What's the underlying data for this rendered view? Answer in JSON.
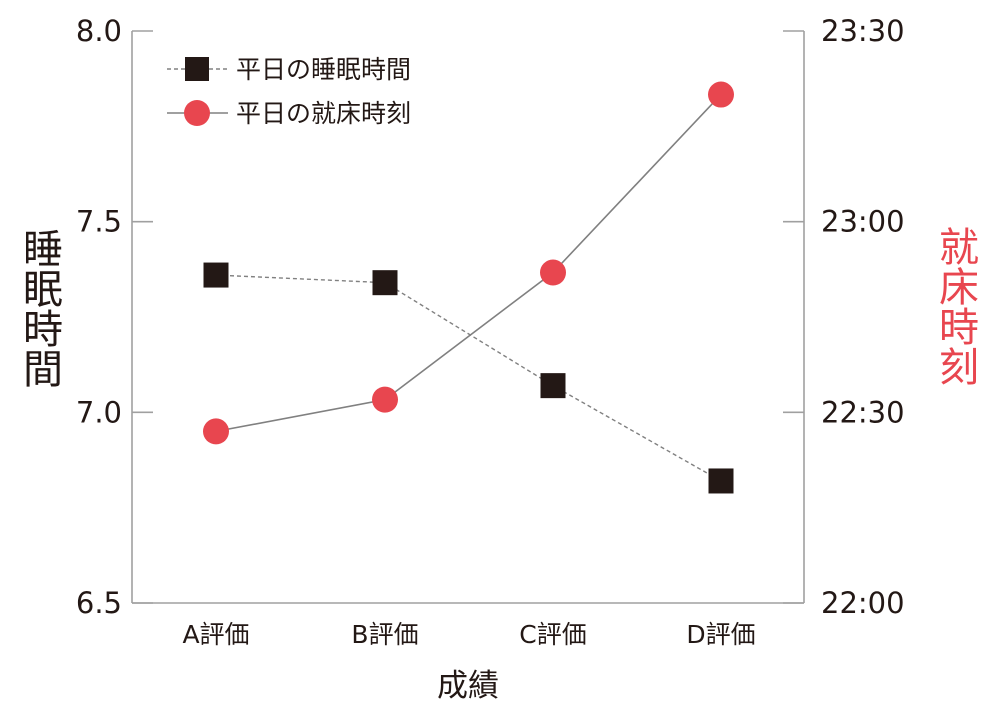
{
  "chart_data": {
    "type": "line",
    "title": "",
    "categories": [
      "A評価",
      "B評価",
      "C評価",
      "D評価"
    ],
    "xlabel": "成績",
    "ylabel": "睡眠時間",
    "ylabel_right": "就床時刻",
    "ylim": [
      6.5,
      8.0
    ],
    "yticks": [
      "6.5",
      "7.0",
      "7.5",
      "8.0"
    ],
    "ylim_right_minutes_after_2200": [
      0,
      90
    ],
    "yticks_right": [
      "22:00",
      "22:30",
      "23:00",
      "23:30"
    ],
    "grid": false,
    "legend_position": "upper-left",
    "series": [
      {
        "name": "平日の睡眠時間",
        "axis": "left",
        "marker": "square",
        "line_style": "dashed",
        "color": "#231815",
        "values": [
          7.36,
          7.34,
          7.07,
          6.82
        ]
      },
      {
        "name": "平日の就床時刻",
        "axis": "right",
        "marker": "circle",
        "line_style": "solid",
        "color": "#E8464F",
        "values_time": [
          "22:27",
          "22:32",
          "22:52",
          "23:20"
        ],
        "values": [
          27,
          32,
          52,
          80
        ]
      }
    ]
  },
  "colors": {
    "text": "#231815",
    "accent_red": "#E8464F",
    "axis": "#A0A0A0",
    "line": "#808080",
    "marker_dark": "#231815"
  }
}
